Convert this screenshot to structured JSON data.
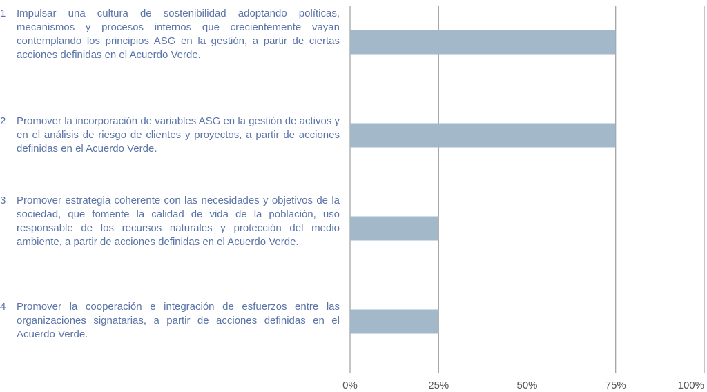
{
  "chart_data": {
    "type": "barh",
    "category_numbers": [
      "1",
      "2",
      "3",
      "4"
    ],
    "categories": [
      "Impulsar una cultura de sostenibilidad adoptando políticas, mecanismos y procesos internos que crecientemente vayan contemplando los principios ASG en la gestión, a partir de ciertas acciones definidas en el Acuerdo Verde.",
      "Promover la incorporación de variables ASG en la gestión de activos y en el análisis de riesgo de clientes y proyectos, a partir de acciones definidas en el Acuerdo Verde.",
      "Promover estrategia coherente con las necesidades y objetivos de la sociedad, que fomente la calidad de vida de la población, uso responsable de los recursos naturales y protección del medio ambiente, a partir de acciones definidas en el Acuerdo Verde.",
      "Promover la cooperación e integración de esfuerzos entre las organizaciones signatarias, a partir de acciones definidas en el Acuerdo Verde."
    ],
    "values": [
      75,
      75,
      25,
      25
    ],
    "color": "#a3b8c8",
    "xlim": [
      0,
      100
    ],
    "xticks": [
      {
        "value": 0,
        "label": "0%"
      },
      {
        "value": 25,
        "label": "25%"
      },
      {
        "value": 50,
        "label": "50%"
      },
      {
        "value": 75,
        "label": "75%"
      },
      {
        "value": 100,
        "label": "100%"
      }
    ],
    "grid": true
  }
}
